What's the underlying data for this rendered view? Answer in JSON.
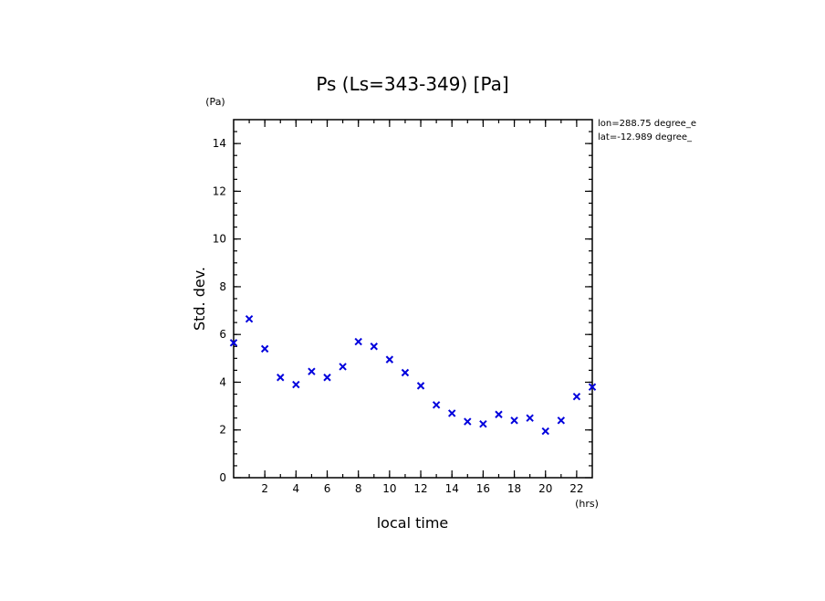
{
  "chart_data": {
    "type": "scatter",
    "title": "Ps (Ls=343-349) [Pa]",
    "xlabel": "local time",
    "ylabel": "Std. dev.",
    "x_unit": "(hrs)",
    "y_unit": "(Pa)",
    "xlim": [
      0,
      23
    ],
    "ylim": [
      0,
      15
    ],
    "x_ticks": [
      2,
      4,
      6,
      8,
      10,
      12,
      14,
      16,
      18,
      20,
      22
    ],
    "y_ticks": [
      0,
      2,
      4,
      6,
      8,
      10,
      12,
      14
    ],
    "grid": false,
    "marker_color": "#0000dd",
    "annotations": [
      "lon=288.75 degree_e",
      "lat=-12.989 degree_"
    ],
    "x": [
      0,
      1,
      2,
      3,
      4,
      5,
      6,
      7,
      8,
      9,
      10,
      11,
      12,
      13,
      14,
      15,
      16,
      17,
      18,
      19,
      20,
      21,
      22,
      23
    ],
    "y": [
      5.65,
      6.65,
      5.4,
      4.2,
      3.9,
      4.45,
      4.2,
      4.65,
      5.7,
      5.5,
      4.95,
      4.4,
      3.85,
      3.05,
      2.7,
      2.35,
      2.25,
      2.65,
      2.4,
      2.5,
      1.95,
      2.4,
      3.4,
      3.8
    ]
  }
}
